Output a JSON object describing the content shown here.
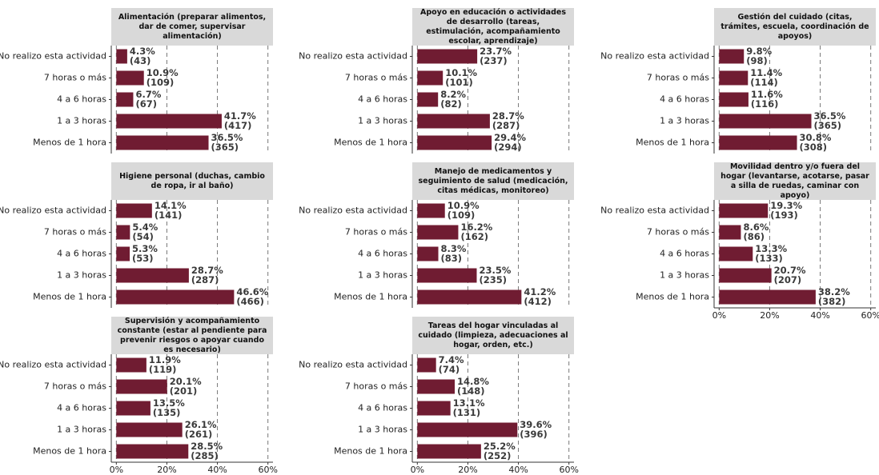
{
  "chart_data": [
    {
      "type": "bar",
      "title": "Alimentación (preparar alimentos, dar de comer, supervisar alimentación)",
      "categories": [
        "No realizo esta actividad",
        "7 horas o más",
        "4 a 6 horas",
        "1 a 3 horas",
        "Menos de 1 hora"
      ],
      "values": [
        4.3,
        10.9,
        6.7,
        41.7,
        36.5
      ],
      "value_labels": [
        "4.3%",
        "10.9%",
        "6.7%",
        "41.7%",
        "36.5%"
      ],
      "count_labels": [
        "(43)",
        "(109)",
        "(67)",
        "(417)",
        "(365)"
      ],
      "color": "#701c32",
      "xlim": [
        -2,
        62
      ],
      "xticks": [
        {
          "value": 0,
          "label": "0%"
        },
        {
          "value": 20,
          "label": "20%"
        },
        {
          "value": 40,
          "label": "40%"
        },
        {
          "value": 60,
          "label": "60%"
        }
      ],
      "grid": true
    },
    {
      "type": "bar",
      "title": "Apoyo en educación o actividades de desarrollo (tareas, estimulación, acompañamiento escolar, aprendizaje)",
      "categories": [
        "No realizo esta actividad",
        "7 horas o más",
        "4 a 6 horas",
        "1 a 3 horas",
        "Menos de 1 hora"
      ],
      "values": [
        23.7,
        10.1,
        8.2,
        28.7,
        29.4
      ],
      "value_labels": [
        "23.7%",
        "10.1%",
        "8.2%",
        "28.7%",
        "29.4%"
      ],
      "count_labels": [
        "(237)",
        "(101)",
        "(82)",
        "(287)",
        "(294)"
      ],
      "color": "#701c32",
      "xlim": [
        -2,
        62
      ],
      "xticks": [
        {
          "value": 0,
          "label": "0%"
        },
        {
          "value": 20,
          "label": "20%"
        },
        {
          "value": 40,
          "label": "40%"
        },
        {
          "value": 60,
          "label": "60%"
        }
      ],
      "grid": true
    },
    {
      "type": "bar",
      "title": "Gestión del cuidado (citas, trámites, escuela, coordinación de apoyos)",
      "categories": [
        "No realizo esta actividad",
        "7 horas o más",
        "4 a 6 horas",
        "1 a 3 horas",
        "Menos de 1 hora"
      ],
      "values": [
        9.8,
        11.4,
        11.6,
        36.5,
        30.8
      ],
      "value_labels": [
        "9.8%",
        "11.4%",
        "11.6%",
        "36.5%",
        "30.8%"
      ],
      "count_labels": [
        "(98)",
        "(114)",
        "(116)",
        "(365)",
        "(308)"
      ],
      "color": "#701c32",
      "xlim": [
        -2,
        62
      ],
      "xticks": [
        {
          "value": 0,
          "label": "0%"
        },
        {
          "value": 20,
          "label": "20%"
        },
        {
          "value": 40,
          "label": "40%"
        },
        {
          "value": 60,
          "label": "60%"
        }
      ],
      "grid": true
    },
    {
      "type": "bar",
      "title": "Higiene personal (duchas, cambio de ropa, ir al baño)",
      "categories": [
        "No realizo esta actividad",
        "7 horas o más",
        "4 a 6 horas",
        "1 a 3 horas",
        "Menos de 1 hora"
      ],
      "values": [
        14.1,
        5.4,
        5.3,
        28.7,
        46.6
      ],
      "value_labels": [
        "14.1%",
        "5.4%",
        "5.3%",
        "28.7%",
        "46.6%"
      ],
      "count_labels": [
        "(141)",
        "(54)",
        "(53)",
        "(287)",
        "(466)"
      ],
      "color": "#701c32",
      "xlim": [
        -2,
        62
      ],
      "xticks": [
        {
          "value": 0,
          "label": "0%"
        },
        {
          "value": 20,
          "label": "20%"
        },
        {
          "value": 40,
          "label": "40%"
        },
        {
          "value": 60,
          "label": "60%"
        }
      ],
      "grid": true
    },
    {
      "type": "bar",
      "title": "Manejo de medicamentos y seguimiento de salud (medicación, citas médicas, monitoreo)",
      "categories": [
        "No realizo esta actividad",
        "7 horas o más",
        "4 a 6 horas",
        "1 a 3 horas",
        "Menos de 1 hora"
      ],
      "values": [
        10.9,
        16.2,
        8.3,
        23.5,
        41.2
      ],
      "value_labels": [
        "10.9%",
        "16.2%",
        "8.3%",
        "23.5%",
        "41.2%"
      ],
      "count_labels": [
        "(109)",
        "(162)",
        "(83)",
        "(235)",
        "(412)"
      ],
      "color": "#701c32",
      "xlim": [
        -2,
        62
      ],
      "xticks": [
        {
          "value": 0,
          "label": "0%"
        },
        {
          "value": 20,
          "label": "20%"
        },
        {
          "value": 40,
          "label": "40%"
        },
        {
          "value": 60,
          "label": "60%"
        }
      ],
      "grid": true
    },
    {
      "type": "bar",
      "title": "Movilidad dentro y/o fuera del hogar (levantarse, acotarse, pasar a silla de ruedas, caminar con apoyo)",
      "categories": [
        "No realizo esta actividad",
        "7 horas o más",
        "4 a 6 horas",
        "1 a 3 horas",
        "Menos de 1 hora"
      ],
      "values": [
        19.3,
        8.6,
        13.3,
        20.7,
        38.2
      ],
      "value_labels": [
        "19.3%",
        "8.6%",
        "13.3%",
        "20.7%",
        "38.2%"
      ],
      "count_labels": [
        "(193)",
        "(86)",
        "(133)",
        "(207)",
        "(382)"
      ],
      "color": "#701c32",
      "xlim": [
        -2,
        62
      ],
      "xticks": [
        {
          "value": 0,
          "label": "0%"
        },
        {
          "value": 20,
          "label": "20%"
        },
        {
          "value": 40,
          "label": "40%"
        },
        {
          "value": 60,
          "label": "60%"
        }
      ],
      "grid": true
    },
    {
      "type": "bar",
      "title": "Supervisión y acompañamiento constante (estar al pendiente para prevenir riesgos o apoyar cuando es necesario)",
      "categories": [
        "No realizo esta actividad",
        "7 horas o más",
        "4 a 6 horas",
        "1 a 3 horas",
        "Menos de 1 hora"
      ],
      "values": [
        11.9,
        20.1,
        13.5,
        26.1,
        28.5
      ],
      "value_labels": [
        "11.9%",
        "20.1%",
        "13.5%",
        "26.1%",
        "28.5%"
      ],
      "count_labels": [
        "(119)",
        "(201)",
        "(135)",
        "(261)",
        "(285)"
      ],
      "color": "#701c32",
      "xlim": [
        -2,
        62
      ],
      "xticks": [
        {
          "value": 0,
          "label": "0%"
        },
        {
          "value": 20,
          "label": "20%"
        },
        {
          "value": 40,
          "label": "40%"
        },
        {
          "value": 60,
          "label": "60%"
        }
      ],
      "grid": true
    },
    {
      "type": "bar",
      "title": "Tareas del hogar vinculadas al cuidado (limpieza, adecuaciones al hogar, orden, etc.)",
      "categories": [
        "No realizo esta actividad",
        "7 horas o más",
        "4 a 6 horas",
        "1 a 3 horas",
        "Menos de 1 hora"
      ],
      "values": [
        7.4,
        14.8,
        13.1,
        39.6,
        25.2
      ],
      "value_labels": [
        "7.4%",
        "14.8%",
        "13.1%",
        "39.6%",
        "25.2%"
      ],
      "count_labels": [
        "(74)",
        "(148)",
        "(131)",
        "(396)",
        "(252)"
      ],
      "color": "#701c32",
      "xlim": [
        -2,
        62
      ],
      "xticks": [
        {
          "value": 0,
          "label": "0%"
        },
        {
          "value": 20,
          "label": "20%"
        },
        {
          "value": 40,
          "label": "40%"
        },
        {
          "value": 60,
          "label": "60%"
        }
      ],
      "grid": true
    }
  ]
}
